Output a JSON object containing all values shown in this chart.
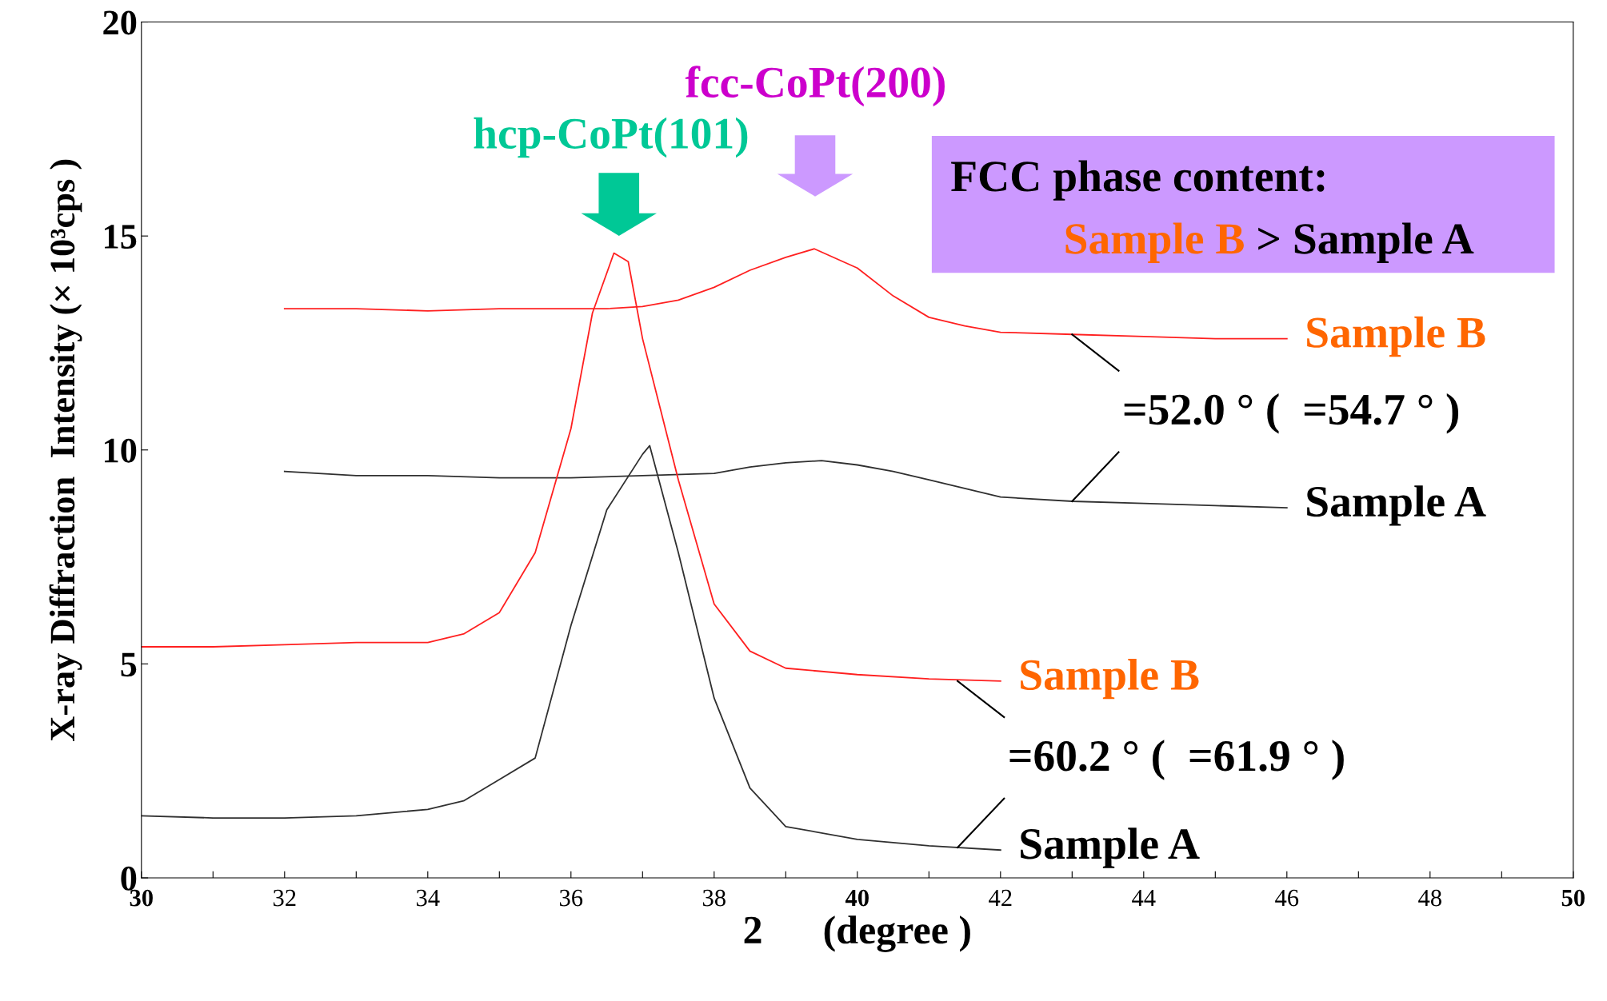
{
  "chart_data": {
    "type": "line",
    "xlabel": "2      (degree )",
    "ylabel": "X-ray Diffraction  Intensity (× 10³cps )",
    "xlim": [
      30,
      50
    ],
    "xticks": [
      30,
      {
        "value": 31,
        "label": null
      },
      32,
      {
        "value": 33,
        "label": null
      },
      34,
      {
        "value": 35,
        "label": null
      },
      36,
      {
        "value": 37,
        "label": null
      },
      38,
      {
        "value": 39,
        "label": null
      },
      40,
      {
        "value": 41,
        "label": null
      },
      42,
      {
        "value": 43,
        "label": null
      },
      44,
      {
        "value": 45,
        "label": null
      },
      46,
      {
        "value": 47,
        "label": null
      },
      48,
      {
        "value": 49,
        "label": null
      },
      50
    ],
    "ylim": [
      0,
      20
    ],
    "yticks": [
      0,
      5,
      10,
      15,
      20
    ],
    "grid": false,
    "legend": false,
    "series": [
      {
        "name": "Sample B",
        "color": "#ff2020",
        "x": [
          32,
          33,
          34,
          35,
          36,
          36.5,
          37,
          37.5,
          38,
          38.5,
          39,
          39.4,
          40,
          40.5,
          41,
          41.5,
          42,
          43,
          44,
          45,
          46
        ],
        "values": [
          13.3,
          13.3,
          13.25,
          13.3,
          13.3,
          13.3,
          13.35,
          13.5,
          13.8,
          14.2,
          14.5,
          14.7,
          14.25,
          13.6,
          13.1,
          12.9,
          12.75,
          12.7,
          12.65,
          12.6,
          12.6
        ]
      },
      {
        "name": "Sample A",
        "color": "#303030",
        "x": [
          32,
          33,
          34,
          35,
          36,
          37,
          38,
          38.5,
          39,
          39.5,
          40,
          40.5,
          41,
          41.5,
          42,
          43,
          44,
          45,
          46
        ],
        "values": [
          9.5,
          9.4,
          9.4,
          9.35,
          9.35,
          9.4,
          9.45,
          9.6,
          9.7,
          9.75,
          9.65,
          9.5,
          9.3,
          9.1,
          8.9,
          8.8,
          8.75,
          8.7,
          8.65
        ]
      },
      {
        "name": "Sample B",
        "color": "#ff2020",
        "x": [
          30,
          31,
          32,
          33,
          34,
          34.5,
          35,
          35.5,
          36,
          36.3,
          36.6,
          36.8,
          37,
          37.5,
          38,
          38.5,
          39,
          40,
          41,
          42
        ],
        "values": [
          5.4,
          5.4,
          5.45,
          5.5,
          5.5,
          5.7,
          6.2,
          7.6,
          10.5,
          13.2,
          14.6,
          14.4,
          12.6,
          9.3,
          6.4,
          5.3,
          4.9,
          4.75,
          4.65,
          4.6
        ]
      },
      {
        "name": "Sample A",
        "color": "#303030",
        "x": [
          30,
          31,
          32,
          33,
          34,
          34.5,
          35,
          35.5,
          36,
          36.5,
          37,
          37.1,
          37.5,
          38,
          38.5,
          39,
          40,
          41,
          42
        ],
        "values": [
          1.45,
          1.4,
          1.4,
          1.45,
          1.6,
          1.8,
          2.3,
          2.8,
          5.9,
          8.6,
          9.9,
          10.1,
          7.6,
          4.2,
          2.1,
          1.2,
          0.9,
          0.75,
          0.65
        ]
      }
    ],
    "annotations": [
      "hcp-CoPt(101)",
      "fcc-CoPt(200)",
      "FCC phase content:",
      "Sample B",
      "> Sample A",
      {
        "text": "=52.0 ° (  =54.7 ° )",
        "x": 43.0,
        "y": 12.7
      },
      {
        "text": "=60.2 ° (  =61.9 ° )",
        "x": 41.4,
        "y": 4.6
      }
    ]
  }
}
